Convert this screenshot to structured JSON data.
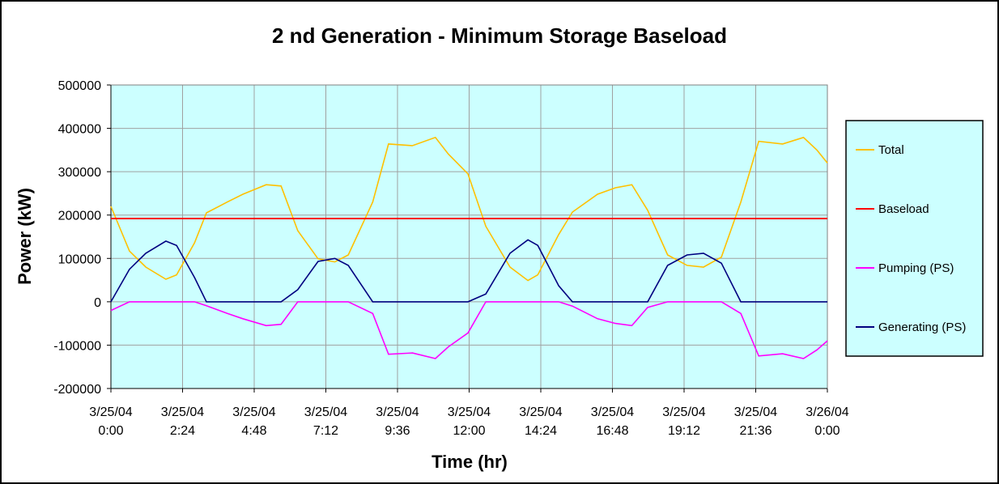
{
  "chart_data": {
    "type": "line",
    "title": "2 nd Generation - Minimum Storage Baseload",
    "xlabel": "Time (hr)",
    "ylabel": "Power (kW)",
    "xlim_hours": [
      0,
      24
    ],
    "ylim": [
      -200000,
      500000
    ],
    "y_ticks": [
      500000,
      400000,
      300000,
      200000,
      100000,
      0,
      -100000,
      -200000
    ],
    "y_tick_labels": [
      "500000",
      "400000",
      "300000",
      "200000",
      "100000",
      "0",
      "-100000",
      "-200000"
    ],
    "x_ticks_hours": [
      0,
      2.4,
      4.8,
      7.2,
      9.6,
      12,
      14.4,
      16.8,
      19.2,
      21.6,
      24
    ],
    "x_tick_labels": [
      [
        "3/25/04",
        "0:00"
      ],
      [
        "3/25/04",
        "2:24"
      ],
      [
        "3/25/04",
        "4:48"
      ],
      [
        "3/25/04",
        "7:12"
      ],
      [
        "3/25/04",
        "9:36"
      ],
      [
        "3/25/04",
        "12:00"
      ],
      [
        "3/25/04",
        "14:24"
      ],
      [
        "3/25/04",
        "16:48"
      ],
      [
        "3/25/04",
        "19:12"
      ],
      [
        "3/25/04",
        "21:36"
      ],
      [
        "3/26/04",
        "0:00"
      ]
    ],
    "grid": true,
    "legend_position": "right",
    "x_hours": [
      0,
      0.62,
      1.17,
      1.84,
      2.2,
      2.8,
      3.2,
      3.9,
      4.42,
      5.2,
      5.7,
      6.26,
      6.94,
      7.5,
      7.95,
      8.77,
      9.3,
      10.1,
      10.87,
      11.3,
      11.96,
      12.56,
      13.37,
      13.97,
      14.3,
      15.0,
      15.46,
      16.3,
      16.9,
      17.45,
      17.98,
      18.65,
      19.3,
      19.85,
      20.45,
      21.1,
      21.7,
      22.5,
      23.2,
      23.65,
      24
    ],
    "series": [
      {
        "name": "Total",
        "color": "#FFC000",
        "values": [
          220000,
          117000,
          80000,
          52000,
          62000,
          136000,
          205000,
          230000,
          248000,
          270000,
          267000,
          164000,
          99000,
          92000,
          108000,
          230000,
          364000,
          360000,
          379000,
          341000,
          295000,
          174000,
          80000,
          49000,
          62000,
          155000,
          207000,
          248000,
          263000,
          270000,
          211000,
          108000,
          84000,
          80000,
          103000,
          230000,
          370000,
          364000,
          379000,
          350000,
          320000
        ]
      },
      {
        "name": "Baseload",
        "color": "#FF0000",
        "values": [
          192000,
          192000,
          192000,
          192000,
          192000,
          192000,
          192000,
          192000,
          192000,
          192000,
          192000,
          192000,
          192000,
          192000,
          192000,
          192000,
          192000,
          192000,
          192000,
          192000,
          192000,
          192000,
          192000,
          192000,
          192000,
          192000,
          192000,
          192000,
          192000,
          192000,
          192000,
          192000,
          192000,
          192000,
          192000,
          192000,
          192000,
          192000,
          192000,
          192000,
          192000
        ]
      },
      {
        "name": "Pumping (PS)",
        "color": "#FF00FF",
        "values": [
          -20000,
          0,
          0,
          0,
          0,
          0,
          -9000,
          -27000,
          -39000,
          -55000,
          -52000,
          0,
          0,
          0,
          0,
          -27000,
          -121000,
          -118000,
          -131000,
          -104000,
          -72000,
          0,
          0,
          0,
          0,
          0,
          -10000,
          -39000,
          -50000,
          -55000,
          -13000,
          0,
          0,
          0,
          0,
          -27000,
          -125000,
          -120000,
          -131000,
          -111000,
          -90000
        ]
      },
      {
        "name": "Generating (PS)",
        "color": "#000080",
        "values": [
          0,
          75000,
          112000,
          140000,
          130000,
          56000,
          0,
          0,
          0,
          0,
          0,
          28000,
          93000,
          100000,
          84000,
          0,
          0,
          0,
          0,
          0,
          0,
          18000,
          112000,
          143000,
          130000,
          37000,
          0,
          0,
          0,
          0,
          0,
          84000,
          108000,
          112000,
          89000,
          0,
          0,
          0,
          0,
          0,
          0
        ]
      }
    ]
  },
  "colors": {
    "plot_background": "#CCFFFF",
    "legend_background": "#CCFFFF",
    "grid": "#A0A0A0"
  }
}
